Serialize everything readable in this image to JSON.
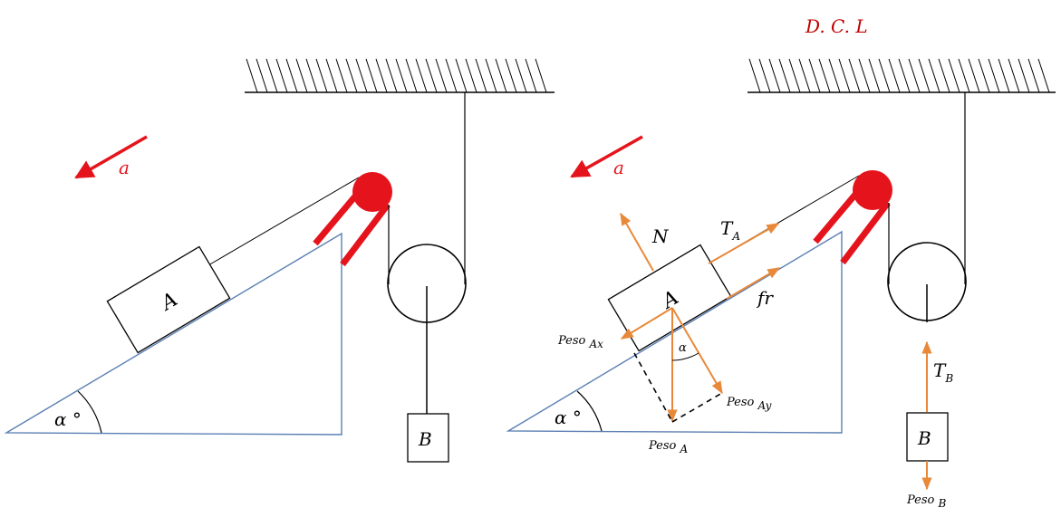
{
  "colors": {
    "incline": "#5b7fb3",
    "outline": "#000000",
    "red": "#e5141c",
    "force": "#e8893a",
    "title": "#c00000"
  },
  "title": "D. C. L",
  "left": {
    "accel_label": "a",
    "block_a": "A",
    "block_b": "B",
    "angle": "α °"
  },
  "right": {
    "accel_label": "a",
    "block_a": "A",
    "block_b": "B",
    "angle": "α °",
    "small_angle": "α",
    "normal": "N",
    "tension_a": {
      "main": "T",
      "sub": "A"
    },
    "friction": "fr",
    "tension_b": {
      "main": "T",
      "sub": "B"
    },
    "peso_ax": {
      "main": "Peso ",
      "sub": "Ax"
    },
    "peso_ay": {
      "main": "Peso ",
      "sub": "Ay"
    },
    "peso_a": {
      "main": "Peso ",
      "sub": "A"
    },
    "peso_b": {
      "main": "Peso ",
      "sub": "B"
    }
  }
}
